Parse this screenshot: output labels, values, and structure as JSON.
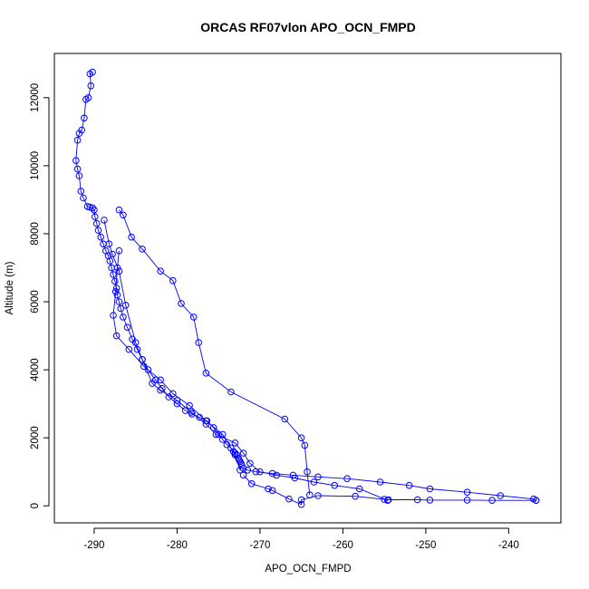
{
  "chart_data": {
    "type": "line",
    "title": "ORCAS RF07vlon APO_OCN_FMPD",
    "xlabel": "APO_OCN_FMPD",
    "ylabel": "Altitude (m)",
    "xlim": [
      -294.8,
      -233.7
    ],
    "ylim": [
      -500,
      13300
    ],
    "x_ticks": [
      -290,
      -280,
      -270,
      -260,
      -250,
      -240
    ],
    "y_ticks": [
      0,
      2000,
      4000,
      6000,
      8000,
      10000,
      12000
    ],
    "grid": false,
    "legend": "none",
    "series_color": "#0000ff",
    "marker": "open-circle",
    "series": [
      {
        "x": [
          -290.2,
          -290.5,
          -290.4,
          -290.7,
          -291.0,
          -291.2,
          -291.5,
          -291.8,
          -292.0,
          -292.2,
          -292.0,
          -291.8,
          -291.6,
          -291.3,
          -290.8,
          -290.5,
          -290.2,
          -290.0,
          -289.9,
          -289.7,
          -289.5,
          -289.2,
          -288.9,
          -288.6,
          -288.3,
          -288.1,
          -287.9,
          -287.7,
          -287.5,
          -287.3,
          -287.2,
          -287.0,
          -286.8,
          -286.5,
          -286.0,
          -285.4,
          -284.8,
          -284.2,
          -283.5,
          -282.6,
          -281.8,
          -281.0,
          -280.0,
          -279.0,
          -278.2,
          -277.3,
          -276.4,
          -275.6,
          -275.0,
          -274.5,
          -274.0,
          -273.5,
          -273.2,
          -273.0,
          -272.8,
          -272.6,
          -272.5,
          -272.4,
          -272.3,
          -272.2
        ],
        "y": [
          12750,
          12700,
          12350,
          12000,
          11950,
          11400,
          11050,
          10950,
          10750,
          10150,
          9900,
          9700,
          9250,
          9050,
          8800,
          8780,
          8760,
          8700,
          8500,
          8300,
          8100,
          7900,
          7700,
          7500,
          7350,
          7200,
          7000,
          6800,
          6600,
          6400,
          6200,
          6000,
          5800,
          5550,
          5250,
          4900,
          4600,
          4300,
          4000,
          3700,
          3450,
          3200,
          3000,
          2800,
          2700,
          2600,
          2500,
          2300,
          2100,
          1950,
          1800,
          1700,
          1600,
          1550,
          1500,
          1400,
          1350,
          1300,
          1250,
          1200
        ]
      },
      {
        "x": [
          -272.0,
          -271.5,
          -270.5,
          -268.5,
          -266.0,
          -263.0,
          -259.5,
          -255.5,
          -252.0,
          -249.5,
          -245.0,
          -241.0,
          -237.0,
          -236.7
        ],
        "y": [
          1100,
          1050,
          1000,
          950,
          900,
          850,
          800,
          700,
          600,
          500,
          400,
          300,
          200,
          160
        ]
      },
      {
        "x": [
          -236.7,
          -242.0,
          -245.0,
          -249.5,
          -251.0,
          -254.5,
          -255.0,
          -258.5,
          -263.0,
          -265.0,
          -265.0,
          -266.5,
          -268.5,
          -269.0,
          -271.0,
          -272.0
        ],
        "y": [
          160,
          160,
          170,
          170,
          180,
          180,
          190,
          280,
          300,
          180,
          40,
          200,
          450,
          500,
          650,
          900
        ]
      },
      {
        "x": [
          -272.4,
          -273.0,
          -274.5,
          -276.5,
          -278.5,
          -280.5,
          -282.0,
          -284.0,
          -285.8,
          -287.3,
          -287.7,
          -287.4,
          -287.2,
          -287.0
        ],
        "y": [
          1050,
          1500,
          2100,
          2500,
          2950,
          3300,
          3700,
          4100,
          4600,
          5000,
          5600,
          6300,
          7000,
          7500
        ]
      },
      {
        "x": [
          -287.0,
          -286.5,
          -285.5,
          -284.2,
          -282.0,
          -280.5,
          -279.5,
          -278.0,
          -277.4,
          -276.5,
          -273.5,
          -267.0,
          -265.0,
          -264.6,
          -264.3,
          -264.0
        ],
        "y": [
          8700,
          8550,
          7900,
          7550,
          6900,
          6620,
          5950,
          5550,
          4800,
          3900,
          3350,
          2550,
          2000,
          1780,
          1000,
          320
        ]
      },
      {
        "x": [
          -288.8,
          -288.2,
          -287.8,
          -287.0,
          -286.2,
          -285.0,
          -284.2,
          -283.0,
          -282.0,
          -280.0,
          -278.3,
          -276.5,
          -275.3,
          -273.0,
          -272.0,
          -271.2,
          -270.0,
          -268.0,
          -265.8,
          -263.5,
          -261.0,
          -258.0,
          -254.6
        ],
        "y": [
          8400,
          7700,
          7400,
          6900,
          5900,
          4800,
          4300,
          3600,
          3400,
          3100,
          2750,
          2400,
          2100,
          1850,
          1550,
          1250,
          1000,
          900,
          820,
          700,
          600,
          500,
          160
        ]
      }
    ]
  }
}
